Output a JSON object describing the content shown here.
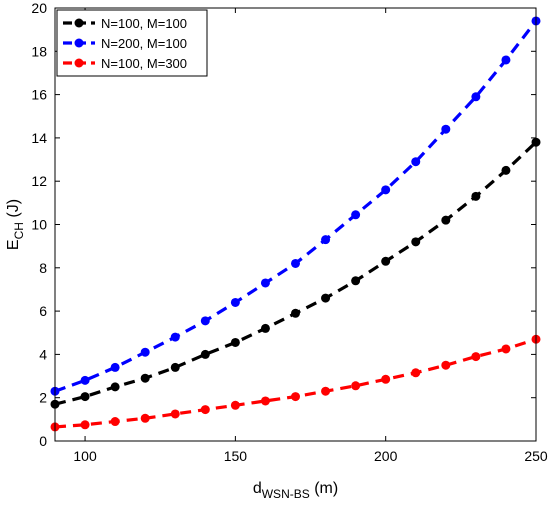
{
  "chart_data": {
    "type": "line",
    "xlabel": "d",
    "xlabel_sub": "WSN-BS",
    "xlabel_unit": "(m)",
    "ylabel": "E",
    "ylabel_sub": "CH",
    "ylabel_unit": "(J)",
    "xlim": [
      90,
      250
    ],
    "ylim": [
      0,
      20
    ],
    "xticks": [
      100,
      150,
      200,
      250
    ],
    "yticks": [
      0,
      2,
      4,
      6,
      8,
      10,
      12,
      14,
      16,
      18,
      20
    ],
    "grid": false,
    "legend_position": "top-left",
    "x": [
      90,
      100,
      110,
      120,
      130,
      140,
      150,
      160,
      170,
      180,
      190,
      200,
      210,
      220,
      230,
      240,
      250
    ],
    "series": [
      {
        "name": "N=100, M=100",
        "color": "#000000",
        "values": [
          1.7,
          2.05,
          2.5,
          2.9,
          3.4,
          4.0,
          4.55,
          5.2,
          5.9,
          6.6,
          7.4,
          8.3,
          9.2,
          10.2,
          11.3,
          12.5,
          13.8
        ]
      },
      {
        "name": "N=200, M=100",
        "color": "#0000ff",
        "values": [
          2.3,
          2.8,
          3.4,
          4.1,
          4.8,
          5.55,
          6.4,
          7.3,
          8.2,
          9.3,
          10.45,
          11.6,
          12.9,
          14.4,
          15.9,
          17.6,
          19.4
        ]
      },
      {
        "name": "N=100, M=300",
        "color": "#ff0000",
        "values": [
          0.65,
          0.75,
          0.9,
          1.05,
          1.25,
          1.45,
          1.65,
          1.85,
          2.05,
          2.3,
          2.55,
          2.85,
          3.15,
          3.5,
          3.9,
          4.25,
          4.7
        ]
      }
    ]
  }
}
